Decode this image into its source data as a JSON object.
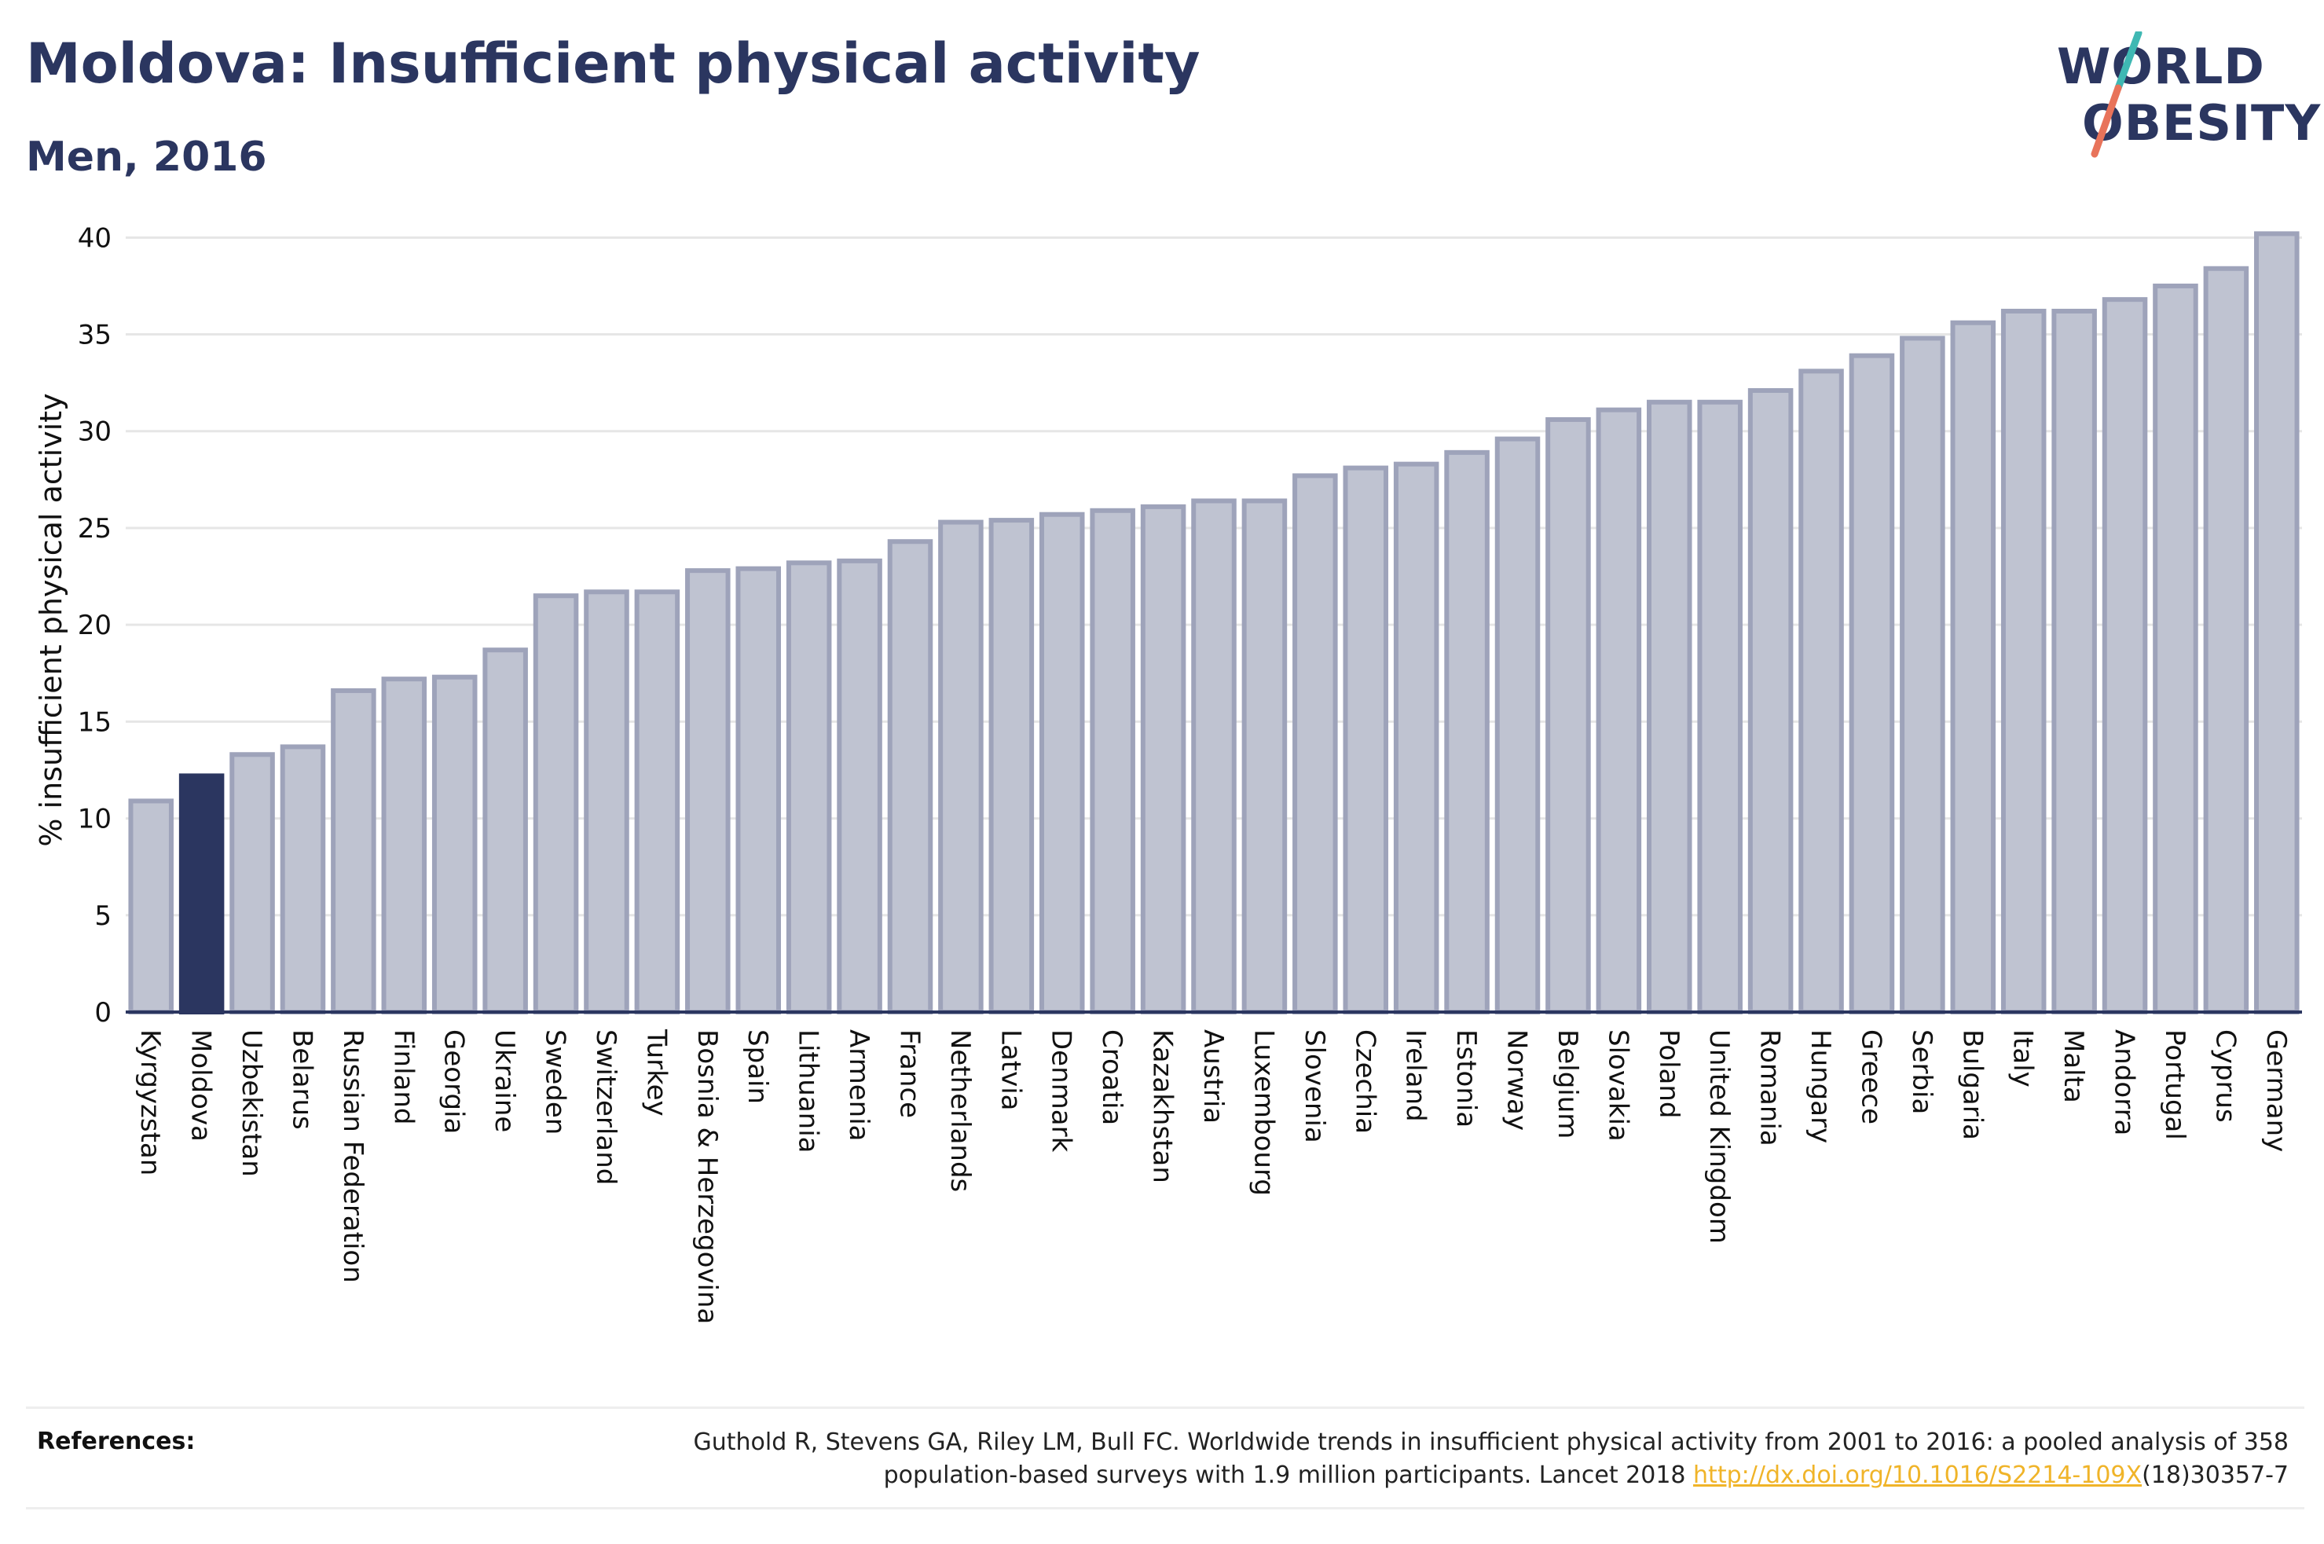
{
  "header": {
    "title": "Moldova: Insufficient physical activity",
    "subtitle": "Men, 2016"
  },
  "logo": {
    "line1": "WORLD",
    "line2": "OBESITY",
    "accent_teal": "#3fb8b3",
    "accent_coral": "#e8735a"
  },
  "colors": {
    "highlight": "#2b3660",
    "bar_fill": "#bfc3d1",
    "bar_stroke": "#9ea3ba",
    "grid": "#e6e6e6",
    "axis": "#2b3660",
    "link": "#f0b429"
  },
  "chart_data": {
    "type": "bar",
    "title": "Moldova: Insufficient physical activity",
    "subtitle": "Men, 2016",
    "xlabel": "",
    "ylabel": "% insufficient physical activity",
    "ylim": [
      0,
      40.5
    ],
    "yticks": [
      0,
      5,
      10,
      15,
      20,
      25,
      30,
      35,
      40
    ],
    "grid": true,
    "highlight": "Moldova",
    "categories": [
      "Kyrgyzstan",
      "Moldova",
      "Uzbekistan",
      "Belarus",
      "Russian Federation",
      "Finland",
      "Georgia",
      "Ukraine",
      "Sweden",
      "Switzerland",
      "Turkey",
      "Bosnia & Herzegovina",
      "Spain",
      "Lithuania",
      "Armenia",
      "France",
      "Netherlands",
      "Latvia",
      "Denmark",
      "Croatia",
      "Kazakhstan",
      "Austria",
      "Luxembourg",
      "Slovenia",
      "Czechia",
      "Ireland",
      "Estonia",
      "Norway",
      "Belgium",
      "Slovakia",
      "Poland",
      "United Kingdom",
      "Romania",
      "Hungary",
      "Greece",
      "Serbia",
      "Bulgaria",
      "Italy",
      "Malta",
      "Andorra",
      "Portugal",
      "Cyprus",
      "Germany"
    ],
    "values": [
      10.9,
      12.2,
      13.3,
      13.7,
      16.6,
      17.2,
      17.3,
      18.7,
      21.5,
      21.7,
      21.7,
      22.8,
      22.9,
      23.2,
      23.3,
      24.3,
      25.3,
      25.4,
      25.7,
      25.9,
      26.1,
      26.4,
      26.4,
      27.7,
      28.1,
      28.3,
      28.9,
      29.6,
      30.6,
      31.1,
      31.5,
      31.5,
      32.1,
      33.1,
      33.9,
      34.8,
      35.6,
      36.2,
      36.2,
      36.8,
      37.5,
      38.4,
      40.2
    ]
  },
  "references": {
    "label": "References:",
    "line1": "Guthold R, Stevens GA, Riley LM, Bull FC. Worldwide trends in insufficient physical activity from 2001 to 2016: a pooled analysis of 358",
    "line2_prefix": "population-based surveys with 1.9 million participants. Lancet 2018 ",
    "link_text": "http://dx.doi.org/10.1016/S2214-109X",
    "line2_suffix": "(18)30357-7"
  }
}
